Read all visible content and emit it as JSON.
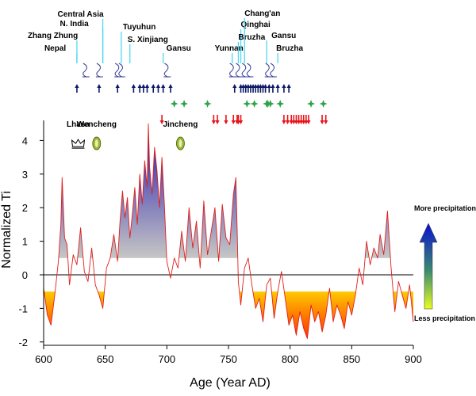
{
  "chart_data": {
    "type": "line",
    "title": "",
    "xlabel": "Age (Year AD)",
    "ylabel": "Normalized Ti",
    "xlim": [
      600,
      900
    ],
    "ylim": [
      -2.1,
      4.6
    ],
    "xticks": [
      600,
      650,
      700,
      750,
      800,
      850,
      900
    ],
    "yticks": [
      -2,
      -1,
      0,
      1,
      2,
      3,
      4
    ],
    "grid": false,
    "colors": {
      "line": "#e0201c",
      "wet_top": "#1a10b0",
      "wet_bottom": "#c4c4c4",
      "dry_top": "#ffcc00",
      "dry_bottom": "#ff2200",
      "place_label_line": "#4fd8f0",
      "glyph": "#333a99",
      "blue_arrow": "#0d1a66",
      "green_marker": "#2ea34a",
      "red_arrow": "#e8141c"
    },
    "thresholds": {
      "wet": 0.5,
      "dry": -0.5
    },
    "series": [
      {
        "x": [
          600,
          603,
          606,
          609,
          612,
          614,
          615,
          617,
          619,
          621,
          624,
          627,
          630,
          633,
          636,
          639,
          642,
          645,
          648,
          651,
          654,
          657,
          660,
          662,
          664,
          666,
          668,
          670,
          672,
          674,
          676,
          678,
          680,
          682,
          684,
          685,
          686,
          688,
          690,
          692,
          694,
          696,
          698,
          700,
          703,
          706,
          709,
          712,
          715,
          718,
          721,
          724,
          727,
          730,
          733,
          736,
          739,
          742,
          745,
          748,
          751,
          754,
          756,
          757,
          758,
          760,
          763,
          766,
          769,
          772,
          775,
          778,
          781,
          784,
          787,
          790,
          793,
          796,
          799,
          802,
          805,
          808,
          811,
          814,
          817,
          820,
          823,
          826,
          829,
          832,
          835,
          838,
          841,
          844,
          847,
          850,
          853,
          856,
          859,
          862,
          865,
          868,
          871,
          873,
          876,
          879,
          882,
          885,
          888,
          891,
          894,
          897,
          900
        ],
        "y": [
          -0.4,
          -1.2,
          -1.5,
          -0.6,
          0.4,
          1.5,
          2.9,
          1.1,
          0.9,
          -0.3,
          0.6,
          0.3,
          1.4,
          0.1,
          -0.2,
          0.8,
          -0.3,
          -0.6,
          -1.0,
          0.2,
          0.5,
          1.2,
          0.4,
          1.6,
          2.5,
          1.7,
          2.3,
          1.1,
          1.8,
          2.6,
          1.5,
          3.0,
          2.1,
          3.4,
          2.6,
          4.5,
          3.2,
          2.4,
          3.8,
          3.1,
          2.0,
          3.5,
          2.1,
          0.4,
          -0.1,
          0.5,
          0.2,
          1.3,
          0.4,
          2.0,
          0.8,
          1.6,
          0.2,
          2.2,
          0.6,
          1.3,
          2.0,
          0.4,
          2.1,
          1.1,
          0.9,
          2.4,
          2.9,
          1.4,
          -0.2,
          -0.9,
          0.2,
          0.5,
          -0.3,
          -1.0,
          -0.7,
          -1.4,
          -0.3,
          -0.1,
          -1.3,
          -0.5,
          0.1,
          -0.7,
          -1.5,
          -1.2,
          -1.8,
          -1.1,
          -1.6,
          -1.9,
          -0.9,
          -1.4,
          -1.1,
          -1.7,
          -1.2,
          -0.4,
          -1.4,
          -0.9,
          -1.2,
          -1.6,
          -0.8,
          -1.2,
          -0.6,
          0.2,
          -0.3,
          1.0,
          0.3,
          0.8,
          0.5,
          1.2,
          0.6,
          1.9,
          0.2,
          -1.1,
          -0.2,
          -0.6,
          -1.0,
          -0.3,
          -1.4
        ]
      }
    ],
    "place_labels": [
      {
        "text": "Zhang Zhung",
        "year": 627
      },
      {
        "text": "Nepal",
        "year": 627
      },
      {
        "text": "N. India",
        "year": 648
      },
      {
        "text": "Central Asia",
        "year": 648
      },
      {
        "text": "Tuyuhun",
        "year": 663
      },
      {
        "text": "S. Xinjiang",
        "year": 670
      },
      {
        "text": "Gansu",
        "year": 697
      },
      {
        "text": "Yunnan",
        "year": 753
      },
      {
        "text": "Qinghai",
        "year": 760
      },
      {
        "text": "Bruzha",
        "year": 758
      },
      {
        "text": "Chang'an",
        "year": 763
      },
      {
        "text": "Gansu",
        "year": 781
      },
      {
        "text": "Bruzha",
        "year": 790
      }
    ],
    "glyph_years": [
      634,
      645,
      660,
      663,
      700,
      753,
      758,
      763,
      767,
      782,
      786
    ],
    "blue_arrow_years": [
      627,
      645,
      660,
      673,
      678,
      681,
      684,
      689,
      693,
      697,
      703,
      755,
      760,
      762,
      764,
      766,
      768,
      770,
      772,
      774,
      776,
      778,
      780,
      783,
      786,
      790,
      795,
      799
    ],
    "green_marker_years": [
      706,
      714,
      733,
      765,
      771,
      781,
      782,
      784,
      792,
      817,
      827
    ],
    "red_arrow_years": [
      696,
      738,
      741,
      748,
      754,
      757,
      758,
      760,
      795,
      798,
      801,
      803,
      805,
      807,
      809,
      811,
      813,
      815,
      826,
      829
    ],
    "annotations": [
      {
        "text": "Lhasa",
        "year": 628,
        "value": 4.15,
        "icon": "crown-icon"
      },
      {
        "text": "Wencheng",
        "year": 643,
        "value": 4.15,
        "icon": "lens-icon"
      },
      {
        "text": "Jincheng",
        "year": 711,
        "value": 4.15,
        "icon": "lens-icon"
      }
    ],
    "legend": {
      "top": "More precipitation",
      "bottom": "Less precipitation",
      "position": "right"
    }
  }
}
